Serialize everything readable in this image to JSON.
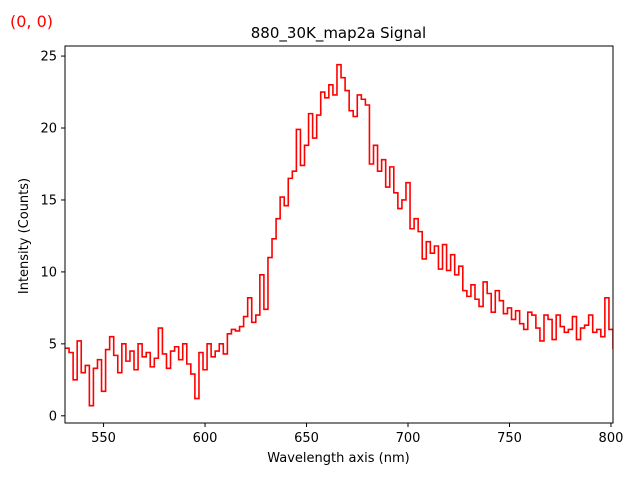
{
  "corner_label": "(0, 0)",
  "chart_data": {
    "type": "line",
    "style": "step",
    "title": "880_30K_map2a Signal",
    "xlabel": "Wavelength axis (nm)",
    "ylabel": "Intensity (Counts)",
    "xlim": [
      531,
      801
    ],
    "ylim": [
      -0.5,
      25.7
    ],
    "xticks": [
      550,
      600,
      650,
      700,
      750,
      800
    ],
    "yticks": [
      0,
      5,
      10,
      15,
      20,
      25
    ],
    "grid": false,
    "series": [
      {
        "color": "#ff0000",
        "x": [
          531,
          533,
          535,
          537,
          539,
          541,
          543,
          545,
          547,
          549,
          551,
          553,
          555,
          557,
          559,
          561,
          563,
          565,
          567,
          569,
          571,
          573,
          575,
          577,
          579,
          581,
          583,
          585,
          587,
          589,
          591,
          593,
          595,
          597,
          599,
          601,
          603,
          605,
          607,
          609,
          611,
          613,
          615,
          617,
          619,
          621,
          623,
          625,
          627,
          629,
          631,
          633,
          635,
          637,
          639,
          641,
          643,
          645,
          647,
          649,
          651,
          653,
          655,
          657,
          659,
          661,
          663,
          665,
          667,
          669,
          671,
          673,
          675,
          677,
          679,
          681,
          683,
          685,
          687,
          689,
          691,
          693,
          695,
          697,
          699,
          701,
          703,
          705,
          707,
          709,
          711,
          713,
          715,
          717,
          719,
          721,
          723,
          725,
          727,
          729,
          731,
          733,
          735,
          737,
          739,
          741,
          743,
          745,
          747,
          749,
          751,
          753,
          755,
          757,
          759,
          761,
          763,
          765,
          767,
          769,
          771,
          773,
          775,
          777,
          779,
          781,
          783,
          785,
          787,
          789,
          791,
          793,
          795,
          797,
          799,
          801
        ],
        "values": [
          4.7,
          4.4,
          2.5,
          5.2,
          3.0,
          3.5,
          0.7,
          3.3,
          3.9,
          1.7,
          4.6,
          5.5,
          4.2,
          3.0,
          5.0,
          3.8,
          4.5,
          3.2,
          5.0,
          4.1,
          4.4,
          3.4,
          4.0,
          6.1,
          4.3,
          3.3,
          4.5,
          4.8,
          3.9,
          5.0,
          3.6,
          2.9,
          1.2,
          4.4,
          3.2,
          5.0,
          4.1,
          4.5,
          5.0,
          4.3,
          5.7,
          6.0,
          5.9,
          6.2,
          6.9,
          8.2,
          6.5,
          7.0,
          9.8,
          7.4,
          11.0,
          12.3,
          13.7,
          15.2,
          14.6,
          16.5,
          17.0,
          19.9,
          17.4,
          18.8,
          21.0,
          19.3,
          20.9,
          22.5,
          22.1,
          23.0,
          22.3,
          24.4,
          23.5,
          22.6,
          21.2,
          20.8,
          22.3,
          22.0,
          21.6,
          17.5,
          18.8,
          17.0,
          17.8,
          15.9,
          17.3,
          15.5,
          14.4,
          15.0,
          16.2,
          13.0,
          13.7,
          12.8,
          10.9,
          12.1,
          11.3,
          11.8,
          10.2,
          11.9,
          10.1,
          11.2,
          9.8,
          10.4,
          8.7,
          8.3,
          9.1,
          8.1,
          7.6,
          9.3,
          8.5,
          7.2,
          8.7,
          8.0,
          7.1,
          7.5,
          6.7,
          7.3,
          6.4,
          6.0,
          7.2,
          7.0,
          6.1,
          5.2,
          7.0,
          6.7,
          5.3,
          7.0,
          6.2,
          5.8,
          6.0,
          6.9,
          5.3,
          6.1,
          6.3,
          7.0,
          5.8,
          6.0,
          5.5,
          8.2,
          6.0,
          4.7
        ]
      }
    ]
  }
}
